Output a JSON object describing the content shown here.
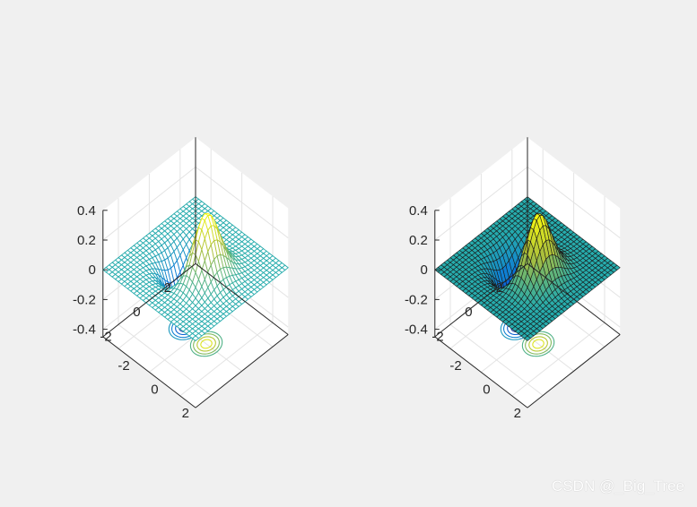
{
  "figure": {
    "background": "#f0f0f0",
    "watermark": "CSDN @_Big_Tree"
  },
  "chart_data": [
    {
      "type": "mesh-contour",
      "title": "",
      "function": "z = x*exp(-x^2-y^2) (peaks-like)",
      "zlim": [
        -0.4,
        0.4
      ],
      "ztick_labels": [
        "0.4",
        "0.2",
        "0",
        "-0.2",
        "-0.4"
      ],
      "x_tick_labels": [
        "-2",
        "0",
        "2"
      ],
      "y_tick_labels": [
        "2",
        "0",
        "-2"
      ],
      "surface_style": "mesh",
      "colormap": "parula",
      "contour_projection": true
    },
    {
      "type": "surf-contour",
      "title": "",
      "function": "z = x*exp(-x^2-y^2) (peaks-like)",
      "zlim": [
        -0.4,
        0.4
      ],
      "ztick_labels": [
        "0.4",
        "0.2",
        "0",
        "-0.2",
        "-0.4"
      ],
      "x_tick_labels": [
        "-2",
        "0",
        "2"
      ],
      "y_tick_labels": [
        "2",
        "0",
        "-2"
      ],
      "surface_style": "surf",
      "colormap": "parula",
      "contour_projection": true
    }
  ]
}
